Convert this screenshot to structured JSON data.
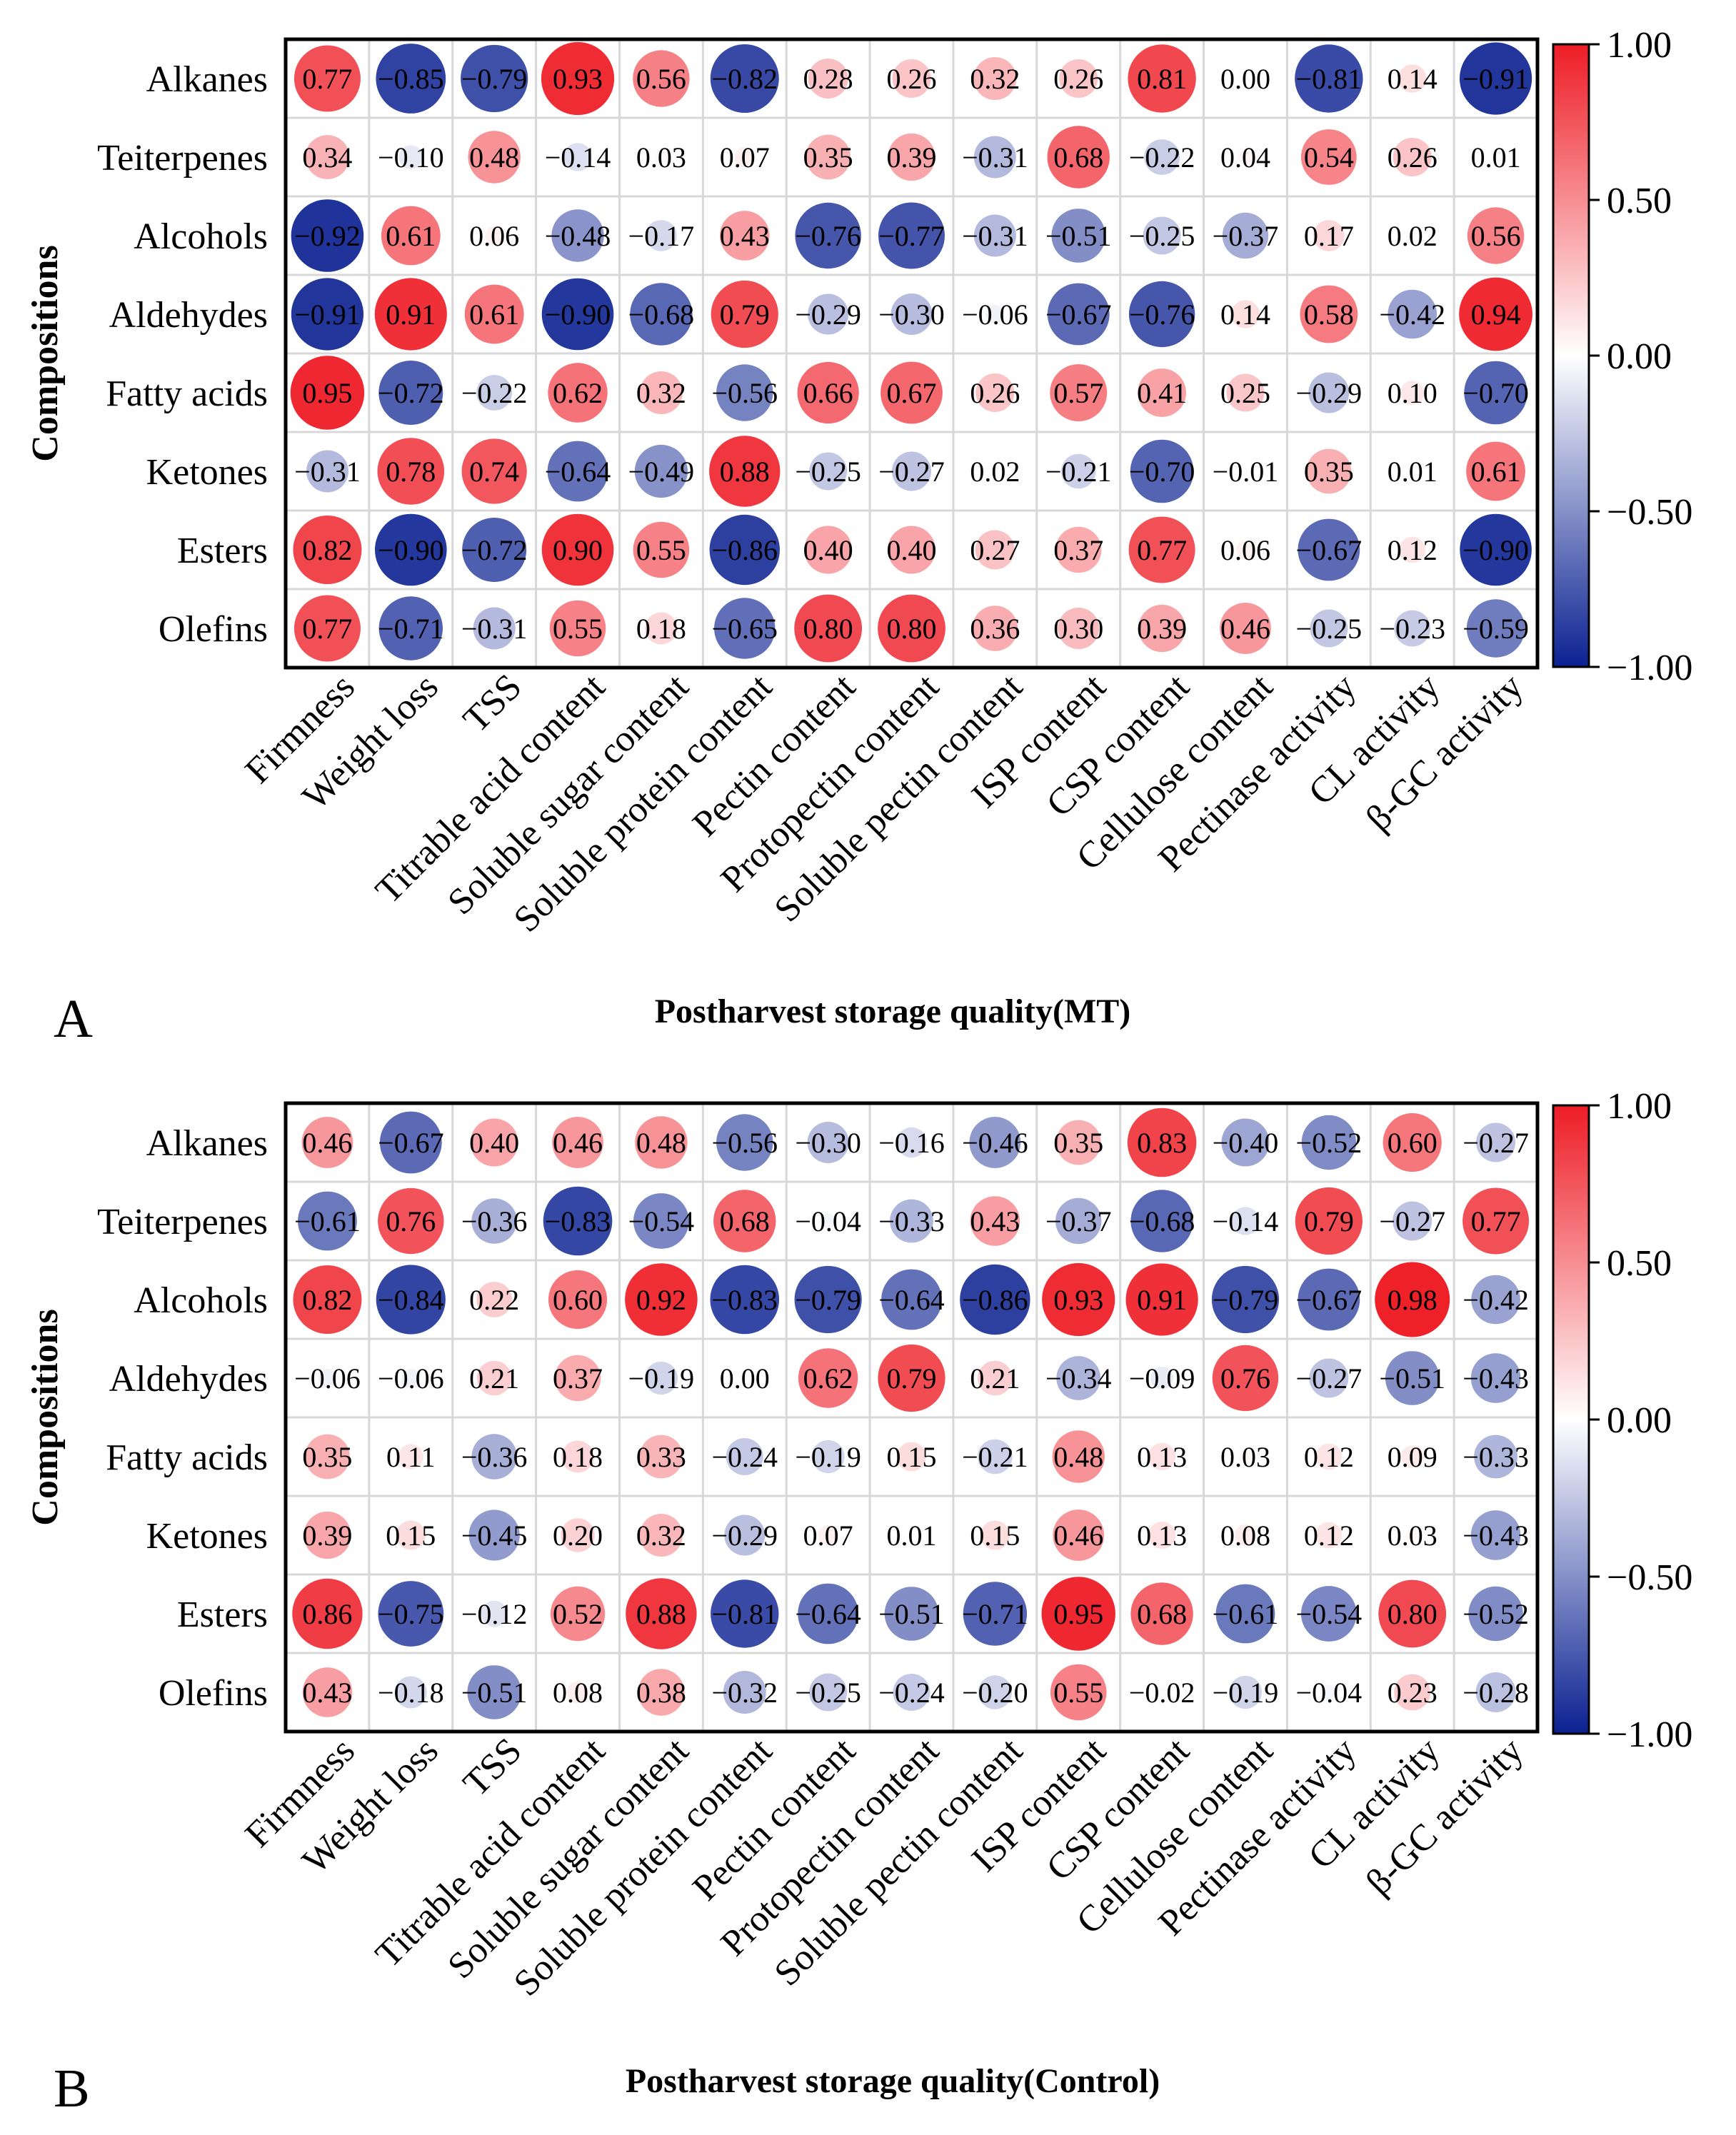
{
  "colors": {
    "positive": "#ee1c25",
    "neutral": "#ffffff",
    "negative": "#0b2191",
    "grid": "#d8d8d8",
    "frame": "#000000"
  },
  "chart_data": [
    {
      "type": "heatmap",
      "panel_label": "A",
      "title": "",
      "xlabel": "Postharvest storage quality(MT)",
      "ylabel": "Compositions",
      "rows": [
        "Alkanes",
        "Teiterpenes",
        "Alcohols",
        "Aldehydes",
        "Fatty acids",
        "Ketones",
        "Esters",
        "Olefins"
      ],
      "columns": [
        "Firmness",
        "Weight loss",
        "TSS",
        "Titrable acid content",
        "Soluble sugar content",
        "Soluble protein content",
        "Pectin content",
        "Protopectin content",
        "Soluble pectin content",
        "ISP content",
        "CSP content",
        "Cellulose content",
        "Pectinase activity",
        "CL activity",
        "β-GC activity"
      ],
      "values": [
        [
          0.77,
          -0.85,
          -0.79,
          0.93,
          0.56,
          -0.82,
          0.28,
          0.26,
          0.32,
          0.26,
          0.81,
          0.0,
          -0.81,
          0.14,
          -0.91
        ],
        [
          0.34,
          -0.1,
          0.48,
          -0.14,
          0.03,
          0.07,
          0.35,
          0.39,
          -0.31,
          0.68,
          -0.22,
          0.04,
          0.54,
          0.26,
          0.01
        ],
        [
          -0.92,
          0.61,
          0.06,
          -0.48,
          -0.17,
          0.43,
          -0.76,
          -0.77,
          -0.31,
          -0.51,
          -0.25,
          -0.37,
          0.17,
          0.02,
          0.56
        ],
        [
          -0.91,
          0.91,
          0.61,
          -0.9,
          -0.68,
          0.79,
          -0.29,
          -0.3,
          -0.06,
          -0.67,
          -0.76,
          0.14,
          0.58,
          -0.42,
          0.94
        ],
        [
          0.95,
          -0.72,
          -0.22,
          0.62,
          0.32,
          -0.56,
          0.66,
          0.67,
          0.26,
          0.57,
          0.41,
          0.25,
          -0.29,
          0.1,
          -0.7
        ],
        [
          -0.31,
          0.78,
          0.74,
          -0.64,
          -0.49,
          0.88,
          -0.25,
          -0.27,
          0.02,
          -0.21,
          -0.7,
          -0.01,
          0.35,
          0.01,
          0.61
        ],
        [
          0.82,
          -0.9,
          -0.72,
          0.9,
          0.55,
          -0.86,
          0.4,
          0.4,
          0.27,
          0.37,
          0.77,
          0.06,
          -0.67,
          0.12,
          -0.9
        ],
        [
          0.77,
          -0.71,
          -0.31,
          0.55,
          0.18,
          -0.65,
          0.8,
          0.8,
          0.36,
          0.3,
          0.39,
          0.46,
          -0.25,
          -0.23,
          -0.59
        ]
      ],
      "colorbar": {
        "range": [
          -1,
          1
        ],
        "ticks": [
          "1.00",
          "0.50",
          "0.00",
          "−0.50",
          "−1.00"
        ]
      }
    },
    {
      "type": "heatmap",
      "panel_label": "B",
      "title": "",
      "xlabel": "Postharvest storage quality(Control)",
      "ylabel": "Compositions",
      "rows": [
        "Alkanes",
        "Teiterpenes",
        "Alcohols",
        "Aldehydes",
        "Fatty acids",
        "Ketones",
        "Esters",
        "Olefins"
      ],
      "columns": [
        "Firmness",
        "Weight loss",
        "TSS",
        "Titrable acid content",
        "Soluble sugar content",
        "Soluble protein content",
        "Pectin content",
        "Protopectin content",
        "Soluble pectin content",
        "ISP content",
        "CSP content",
        "Cellulose content",
        "Pectinase activity",
        "CL activity",
        "β-GC activity"
      ],
      "values": [
        [
          0.46,
          -0.67,
          0.4,
          0.46,
          0.48,
          -0.56,
          -0.3,
          -0.16,
          -0.46,
          0.35,
          0.83,
          -0.4,
          -0.52,
          0.6,
          -0.27
        ],
        [
          -0.61,
          0.76,
          -0.36,
          -0.83,
          -0.54,
          0.68,
          -0.04,
          -0.33,
          0.43,
          -0.37,
          -0.68,
          -0.14,
          0.79,
          -0.27,
          0.77
        ],
        [
          0.82,
          -0.84,
          0.22,
          0.6,
          0.92,
          -0.83,
          -0.79,
          -0.64,
          -0.86,
          0.93,
          0.91,
          -0.79,
          -0.67,
          0.98,
          -0.42
        ],
        [
          -0.06,
          -0.06,
          0.21,
          0.37,
          -0.19,
          0.0,
          0.62,
          0.79,
          0.21,
          -0.34,
          -0.09,
          0.76,
          -0.27,
          -0.51,
          -0.43
        ],
        [
          0.35,
          0.11,
          -0.36,
          0.18,
          0.33,
          -0.24,
          -0.19,
          0.15,
          -0.21,
          0.48,
          0.13,
          0.03,
          0.12,
          0.09,
          -0.33
        ],
        [
          0.39,
          0.15,
          -0.45,
          0.2,
          0.32,
          -0.29,
          0.07,
          0.01,
          0.15,
          0.46,
          0.13,
          0.08,
          0.12,
          0.03,
          -0.43
        ],
        [
          0.86,
          -0.75,
          -0.12,
          0.52,
          0.88,
          -0.81,
          -0.64,
          -0.51,
          -0.71,
          0.95,
          0.68,
          -0.61,
          -0.54,
          0.8,
          -0.52
        ],
        [
          0.43,
          -0.18,
          -0.51,
          0.08,
          0.38,
          -0.32,
          -0.25,
          -0.24,
          -0.2,
          0.55,
          -0.02,
          -0.19,
          -0.04,
          0.23,
          -0.28
        ]
      ],
      "colorbar": {
        "range": [
          -1,
          1
        ],
        "ticks": [
          "1.00",
          "0.50",
          "0.00",
          "−0.50",
          "−1.00"
        ]
      }
    }
  ]
}
